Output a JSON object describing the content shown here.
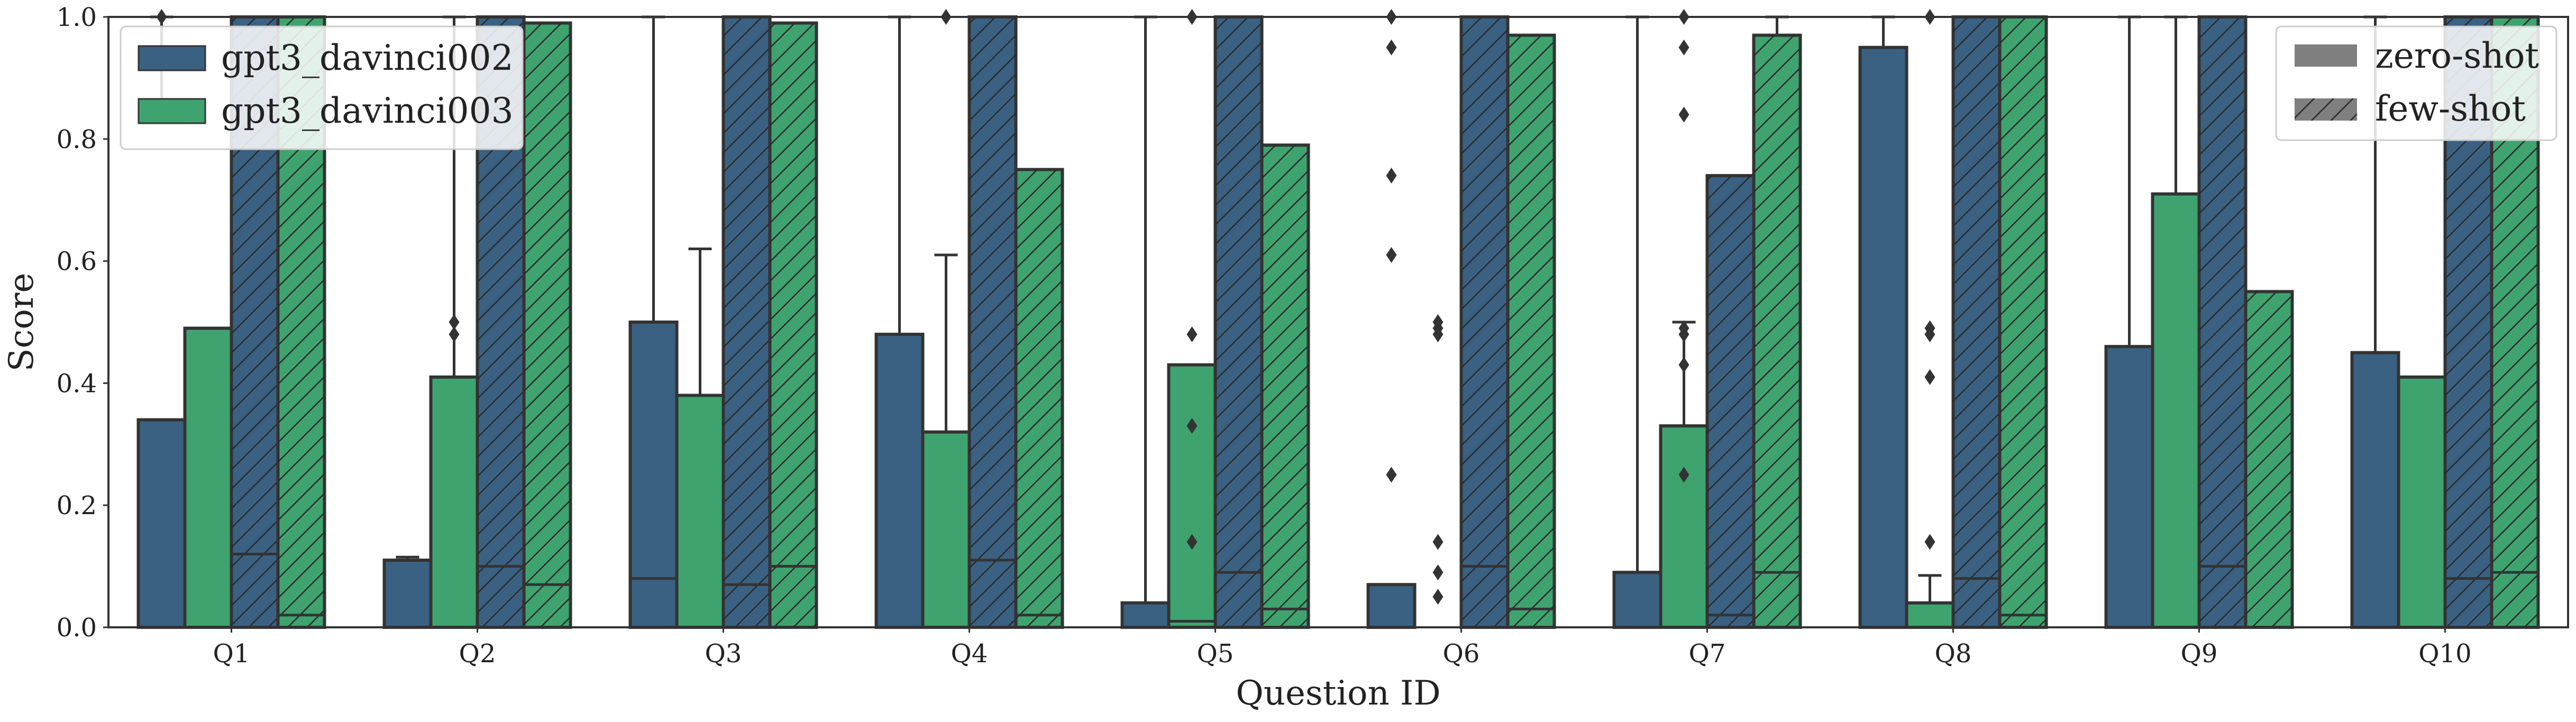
{
  "chart_data": {
    "type": "bar",
    "categories": [
      "Q1",
      "Q2",
      "Q3",
      "Q4",
      "Q5",
      "Q6",
      "Q7",
      "Q8",
      "Q9",
      "Q10"
    ],
    "xlabel": "Question ID",
    "ylabel": "Score",
    "ylim": [
      0,
      1.0
    ],
    "yticks": [
      "0.0",
      "0.2",
      "0.4",
      "0.6",
      "0.8",
      "1.0"
    ],
    "grid": false,
    "series": [
      {
        "name": "gpt3_davinci002",
        "condition": "zero-shot",
        "color": "#3a6182",
        "hatched": false,
        "values": [
          0.34,
          0.11,
          0.5,
          0.48,
          0.04,
          0.07,
          0.09,
          0.95,
          0.46,
          0.45
        ]
      },
      {
        "name": "gpt3_davinci003",
        "condition": "zero-shot",
        "color": "#3fa36f",
        "hatched": false,
        "values": [
          0.49,
          0.41,
          0.38,
          0.32,
          0.43,
          0.0,
          0.33,
          0.04,
          0.71,
          0.41
        ]
      },
      {
        "name": "gpt3_davinci002",
        "condition": "few-shot",
        "color": "#3a6182",
        "hatched": true,
        "values": [
          1.0,
          1.0,
          1.0,
          1.0,
          1.0,
          1.0,
          0.74,
          1.0,
          1.0,
          1.0
        ]
      },
      {
        "name": "gpt3_davinci003",
        "condition": "few-shot",
        "color": "#3fa36f",
        "hatched": true,
        "values": [
          1.0,
          0.99,
          0.99,
          0.75,
          0.79,
          0.97,
          0.97,
          1.0,
          0.55,
          1.0
        ]
      }
    ],
    "medians": [
      [
        null,
        null,
        0.12,
        0.02
      ],
      [
        null,
        null,
        0.1,
        0.07
      ],
      [
        0.08,
        null,
        0.07,
        0.1
      ],
      [
        null,
        null,
        0.11,
        0.02
      ],
      [
        null,
        0.01,
        0.09,
        0.03
      ],
      [
        null,
        null,
        0.1,
        0.03
      ],
      [
        null,
        null,
        0.02,
        0.09
      ],
      [
        null,
        null,
        0.08,
        0.02
      ],
      [
        null,
        null,
        0.1,
        null
      ],
      [
        null,
        null,
        0.08,
        0.09
      ]
    ],
    "whiskers": [
      [
        [
          0.84,
          1.0
        ],
        null,
        null,
        null
      ],
      [
        [
          0.11,
          0.115
        ],
        [
          0.41,
          1.0
        ],
        null,
        null
      ],
      [
        [
          0.5,
          1.0
        ],
        [
          0.38,
          0.62
        ],
        null,
        null
      ],
      [
        [
          0.48,
          1.0
        ],
        [
          0.32,
          0.61
        ],
        null,
        null
      ],
      [
        [
          0.04,
          1.0
        ],
        null,
        null,
        null
      ],
      [
        null,
        null,
        null,
        null
      ],
      [
        [
          0.09,
          1.0
        ],
        [
          0.33,
          0.5
        ],
        null,
        [
          0.97,
          1.0
        ]
      ],
      [
        [
          0.95,
          1.0
        ],
        [
          0.04,
          0.085
        ],
        null,
        null
      ],
      [
        [
          0.46,
          1.0
        ],
        [
          0.71,
          1.0
        ],
        null,
        null
      ],
      [
        [
          0.45,
          1.0
        ],
        null,
        null,
        null
      ]
    ],
    "outliers": [
      [
        [
          1.0
        ],
        [],
        [],
        []
      ],
      [
        [],
        [
          0.48,
          0.5
        ],
        [],
        []
      ],
      [
        [],
        [],
        [],
        []
      ],
      [
        [],
        [
          1.0
        ],
        [],
        []
      ],
      [
        [],
        [
          0.48,
          0.33,
          0.14,
          1.0
        ],
        [],
        []
      ],
      [
        [
          1.0,
          0.95,
          0.74,
          0.61,
          0.25
        ],
        [
          0.5,
          0.49,
          0.48,
          0.14,
          0.09,
          0.05
        ],
        [],
        []
      ],
      [
        [],
        [
          0.49,
          0.48,
          0.43,
          0.25,
          1.0,
          0.95,
          0.84
        ],
        [],
        []
      ],
      [
        [],
        [
          1.0,
          0.49,
          0.48,
          0.41,
          0.14
        ],
        [],
        []
      ],
      [
        [],
        [],
        [],
        []
      ],
      [
        [],
        [],
        [],
        []
      ]
    ]
  },
  "legend": {
    "models": [
      {
        "label": "gpt3_davinci002",
        "color": "#3a6182"
      },
      {
        "label": "gpt3_davinci003",
        "color": "#3fa36f"
      }
    ],
    "conditions": [
      {
        "label": "zero-shot",
        "color": "#7f7f7f",
        "hatched": false
      },
      {
        "label": "few-shot",
        "color": "#7f7f7f",
        "hatched": true
      }
    ]
  }
}
